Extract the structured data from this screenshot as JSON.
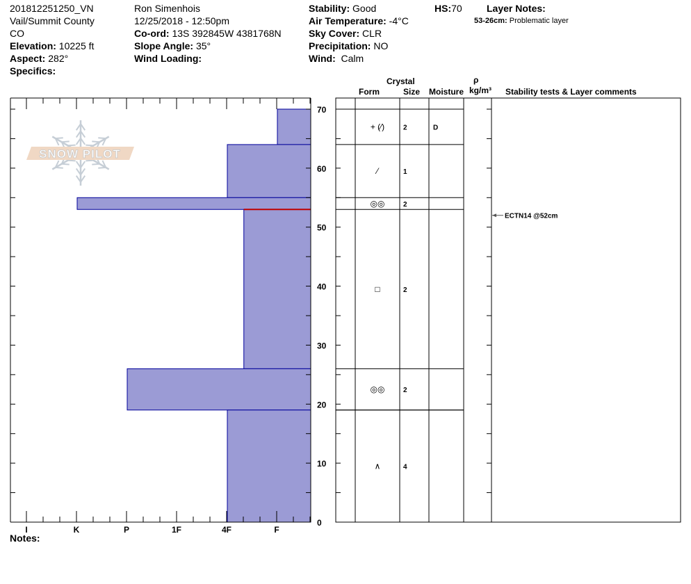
{
  "header": {
    "col1": {
      "profile_id": "201812251250_VN",
      "location": "Vail/Summit County",
      "state": "CO",
      "elevation_label": "Elevation:",
      "elevation": "10225 ft",
      "aspect_label": "Aspect:",
      "aspect": "282°",
      "specifics_label": "Specifics:"
    },
    "col2": {
      "observer": "Ron Simenhois",
      "datetime": "12/25/2018 - 12:50pm",
      "coord_label": "Co-ord:",
      "coord": "13S 392845W 4381768N",
      "slope_label": "Slope Angle:",
      "slope": "35°",
      "wind_loading_label": "Wind Loading:"
    },
    "col3": {
      "stability_label": "Stability:",
      "stability": "Good",
      "air_temp_label": "Air Temperature:",
      "air_temp": "-4°C",
      "sky_label": "Sky Cover:",
      "sky": "CLR",
      "precip_label": "Precipitation:",
      "precip": "NO",
      "wind_label": "Wind:",
      "wind": "Calm"
    },
    "hs_label": "HS:",
    "hs": "70",
    "layer_notes_label": "Layer Notes:",
    "layer_notes": [
      {
        "range": "53-26cm:",
        "text": "Problematic layer"
      }
    ]
  },
  "logo": {
    "text": "SNOW PILOT"
  },
  "notes_label": "Notes:",
  "table_headers": {
    "crystal": "Crystal",
    "form": "Form",
    "size": "Size",
    "moisture": "Moisture",
    "rho": "ρ",
    "density_unit": "kg/m³",
    "comments": "Stability tests & Layer comments"
  },
  "colors": {
    "layer_fill": "#9b9bd5",
    "layer_stroke": "#00009a",
    "weak_layer": "#c00000"
  },
  "chart_data": {
    "type": "bar",
    "orientation": "horizontal-profile",
    "x_tick_labels": [
      "I",
      "K",
      "P",
      "1F",
      "4F",
      "F"
    ],
    "y_ticks": [
      0,
      10,
      20,
      30,
      40,
      50,
      60,
      70
    ],
    "y_tick_labels": [
      "0",
      "10",
      "20",
      "30",
      "40",
      "50",
      "60",
      "70"
    ],
    "ylim": [
      0,
      72
    ],
    "layers": [
      {
        "top": 70,
        "bottom": 64,
        "hardness": "F",
        "hardness_value": 1,
        "form": "+ (⁄)",
        "size": "2",
        "moisture": "D"
      },
      {
        "top": 64,
        "bottom": 55,
        "hardness": "4F",
        "hardness_value": 2,
        "form": "⁄",
        "size": "1",
        "moisture": ""
      },
      {
        "top": 55,
        "bottom": 53,
        "hardness": "K",
        "hardness_value": 5,
        "form": "◎◎",
        "size": "2",
        "moisture": ""
      },
      {
        "top": 53,
        "bottom": 26,
        "hardness": "4F+",
        "hardness_value": 1.67,
        "form": "□",
        "size": "2",
        "moisture": ""
      },
      {
        "top": 26,
        "bottom": 19,
        "hardness": "P",
        "hardness_value": 4,
        "form": "◎◎",
        "size": "2",
        "moisture": ""
      },
      {
        "top": 19,
        "bottom": 0,
        "hardness": "4F",
        "hardness_value": 2,
        "form": "∧",
        "size": "4",
        "moisture": ""
      }
    ],
    "weak_layer_depth": 53,
    "stability_tests": [
      {
        "depth": 52,
        "label": "ECTN14 @52cm"
      }
    ]
  }
}
